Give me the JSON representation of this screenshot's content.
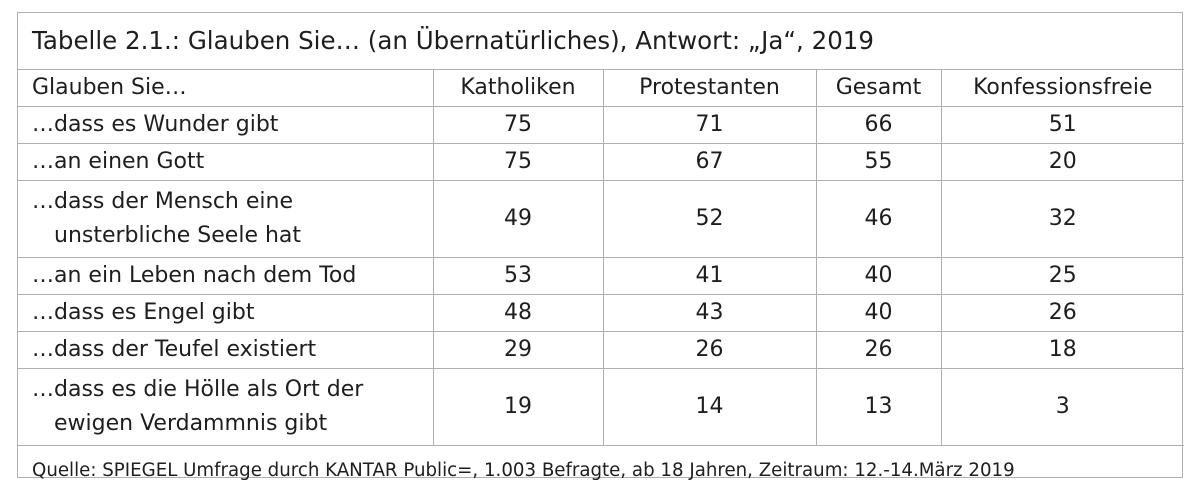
{
  "table": {
    "title": "Tabelle 2.1.: Glauben Sie… (an Übernatürliches), Antwort: „Ja“, 2019",
    "columns": [
      "Glauben Sie…",
      "Katholiken",
      "Protestanten",
      "Gesamt",
      "Konfessionsfreie"
    ],
    "rows": [
      {
        "label": [
          "…dass es Wunder gibt"
        ],
        "values": [
          "75",
          "71",
          "66",
          "51"
        ]
      },
      {
        "label": [
          "…an einen Gott"
        ],
        "values": [
          "75",
          "67",
          "55",
          "20"
        ]
      },
      {
        "label": [
          "…dass der Mensch eine",
          "unsterbliche Seele hat"
        ],
        "values": [
          "49",
          "52",
          "46",
          "32"
        ]
      },
      {
        "label": [
          "…an ein Leben nach dem Tod"
        ],
        "values": [
          "53",
          "41",
          "40",
          "25"
        ]
      },
      {
        "label": [
          "…dass es Engel gibt"
        ],
        "values": [
          "48",
          "43",
          "40",
          "26"
        ]
      },
      {
        "label": [
          "…dass der Teufel existiert"
        ],
        "values": [
          "29",
          "26",
          "26",
          "18"
        ]
      },
      {
        "label": [
          "…dass es die Hölle als Ort der",
          "ewigen Verdammnis gibt"
        ],
        "values": [
          "19",
          "14",
          "13",
          "3"
        ]
      }
    ],
    "source": "Quelle: SPIEGEL Umfrage durch KANTAR Public=, 1.003 Befragte, ab 18 Jahren, Zeitraum: 12.-14.März 2019"
  },
  "colors": {
    "border": "#b0b0b0",
    "text": "#1e1e1e"
  }
}
